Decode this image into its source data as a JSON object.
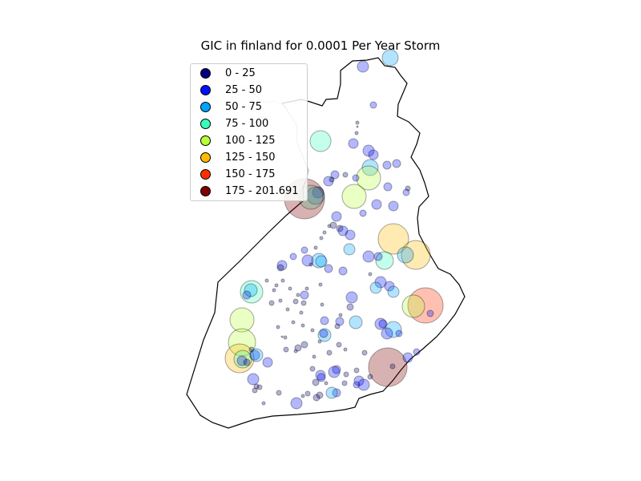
{
  "title": "GIC in finland for 0.0001 Per Year Storm",
  "legend": [
    {
      "label": "0 - 25",
      "color": "#00007f"
    },
    {
      "label": "25 - 50",
      "color": "#0010ff"
    },
    {
      "label": "50 - 75",
      "color": "#00a4ff"
    },
    {
      "label": "75 - 100",
      "color": "#3affbc"
    },
    {
      "label": "100 - 125",
      "color": "#b8ff39"
    },
    {
      "label": "125 - 150",
      "color": "#ffb900"
    },
    {
      "label": "150 - 175",
      "color": "#ff3000"
    },
    {
      "label": "175 - 201.691",
      "color": "#7f0000"
    }
  ],
  "chart_data": {
    "type": "scatter",
    "title": "GIC in finland for 0.0001 Per Year Storm",
    "value_range": [
      0,
      201.691
    ],
    "legend_placement": "top-left",
    "bins": [
      "0 - 25",
      "25 - 50",
      "50 - 75",
      "75 - 100",
      "100 - 125",
      "125 - 150",
      "150 - 175",
      "175 - 201.691"
    ]
  }
}
